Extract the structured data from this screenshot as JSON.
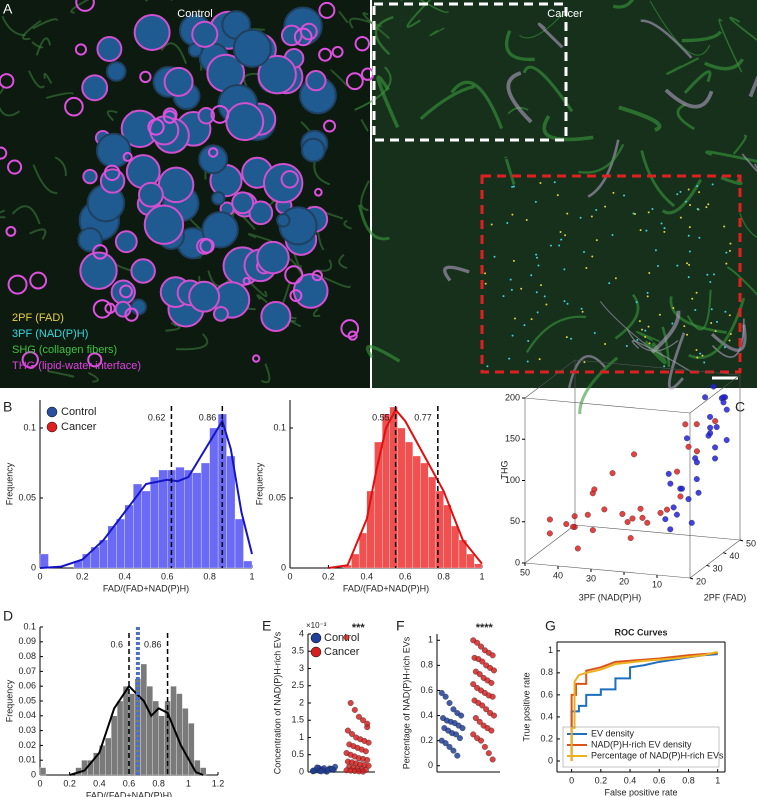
{
  "panel_labels": [
    "A",
    "B",
    "C",
    "D",
    "E",
    "F",
    "G"
  ],
  "image_panel": {
    "left_title": "Control",
    "right_title": "Cancer",
    "channels": [
      {
        "label": "2PF (FAD)",
        "color": "#e8d040"
      },
      {
        "label": "3PF (NAD(P)H)",
        "color": "#30d8e0"
      },
      {
        "label": "SHG (collagen fibers)",
        "color": "#40c040"
      },
      {
        "label": "THG (lipid-water interface)",
        "color": "#e040e0"
      }
    ]
  },
  "chart_data": [
    {
      "type": "histogram",
      "xlabel": "FAD/(FAD+NAD(P)H)",
      "ylabel": "Frequency",
      "xlim": [
        0,
        1
      ],
      "xticks": [
        0,
        0.2,
        0.4,
        0.6,
        0.8,
        1
      ],
      "ylim": [
        0,
        0.12
      ],
      "yticks": [
        0,
        0.05,
        0.1
      ],
      "bins": [
        0,
        0.04,
        0.08,
        0.12,
        0.16,
        0.2,
        0.24,
        0.28,
        0.32,
        0.36,
        0.4,
        0.44,
        0.48,
        0.52,
        0.56,
        0.6,
        0.64,
        0.68,
        0.72,
        0.76,
        0.8,
        0.84,
        0.88,
        0.92,
        0.96,
        1
      ],
      "values": [
        0.01,
        0,
        0,
        0,
        0.005,
        0.01,
        0.015,
        0.02,
        0.03,
        0.035,
        0.045,
        0.06,
        0.055,
        0.065,
        0.07,
        0.07,
        0.072,
        0.07,
        0.068,
        0.075,
        0.1,
        0.11,
        0.08,
        0.035,
        0.005
      ],
      "color": "#6a6af5",
      "fit": {
        "color": "#1515c8",
        "x": [
          0,
          0.1,
          0.2,
          0.3,
          0.4,
          0.5,
          0.6,
          0.65,
          0.7,
          0.8,
          0.86,
          0.9,
          0.95,
          1
        ],
        "values": [
          0,
          0.001,
          0.006,
          0.02,
          0.04,
          0.06,
          0.063,
          0.062,
          0.065,
          0.09,
          0.105,
          0.085,
          0.04,
          0.01
        ]
      },
      "vlines": [
        0.62,
        0.86
      ],
      "legend": [
        {
          "name": "Control",
          "color": "#2b4fa0"
        },
        {
          "name": "Cancer",
          "color": "#e02020"
        }
      ]
    },
    {
      "type": "histogram",
      "xlabel": "FAD/(FAD+NAD(P)H)",
      "ylabel": "Frequency",
      "xlim": [
        0,
        1
      ],
      "xticks": [
        0,
        0.2,
        0.4,
        0.6,
        0.8,
        1
      ],
      "ylim": [
        0,
        0.12
      ],
      "yticks": [
        0,
        0.05,
        0.1
      ],
      "bins": [
        0,
        0.04,
        0.08,
        0.12,
        0.16,
        0.2,
        0.24,
        0.28,
        0.32,
        0.36,
        0.4,
        0.44,
        0.48,
        0.52,
        0.56,
        0.6,
        0.64,
        0.68,
        0.72,
        0.76,
        0.8,
        0.84,
        0.88,
        0.92,
        0.96,
        1
      ],
      "values": [
        0,
        0,
        0,
        0,
        0,
        0,
        0,
        0.002,
        0.01,
        0.025,
        0.055,
        0.09,
        0.11,
        0.115,
        0.1,
        0.09,
        0.08,
        0.075,
        0.065,
        0.055,
        0.045,
        0.03,
        0.02,
        0.01,
        0.003
      ],
      "color": "#f05050",
      "fit": {
        "color": "#e01010",
        "x": [
          0.2,
          0.3,
          0.4,
          0.45,
          0.5,
          0.55,
          0.6,
          0.7,
          0.8,
          0.9,
          1
        ],
        "values": [
          0,
          0.002,
          0.035,
          0.07,
          0.1,
          0.113,
          0.105,
          0.08,
          0.055,
          0.02,
          0.003
        ]
      },
      "vlines": [
        0.55,
        0.77
      ]
    },
    {
      "type": "scatter3d",
      "xlabel": "3PF (NAD(P)H)",
      "ylabel": "2PF (FAD)",
      "zlabel": "THG",
      "xlim": [
        0,
        50
      ],
      "xticks": [
        10,
        20,
        30,
        40,
        50
      ],
      "ylim": [
        20,
        50
      ],
      "yticks": [
        20,
        30,
        40,
        50
      ],
      "zlim": [
        0,
        200
      ],
      "zticks": [
        0,
        50,
        100,
        150,
        200
      ],
      "series": [
        {
          "color": "#e02020",
          "x": [
            45,
            40,
            35,
            30,
            25,
            20,
            15,
            10,
            42,
            38,
            33,
            28,
            22,
            18,
            12,
            8,
            47,
            36,
            26,
            16,
            6,
            44,
            31,
            21,
            14,
            9,
            5,
            24,
            34,
            3
          ],
          "y": [
            25,
            30,
            22,
            28,
            35,
            24,
            32,
            26,
            34,
            21,
            27,
            38,
            23,
            30,
            36,
            40,
            29,
            33,
            25,
            22,
            31,
            37,
            24,
            28,
            42,
            35,
            45,
            39,
            26,
            30
          ],
          "z": [
            30,
            45,
            20,
            60,
            40,
            35,
            55,
            70,
            25,
            50,
            80,
            30,
            65,
            45,
            100,
            120,
            40,
            25,
            110,
            75,
            140,
            20,
            90,
            130,
            60,
            160,
            150,
            35,
            55,
            170
          ]
        },
        {
          "color": "#2020e0",
          "x": [
            2,
            4,
            6,
            8,
            3,
            5,
            7,
            9,
            1,
            10,
            2,
            4,
            6,
            3,
            5,
            8,
            1,
            7,
            11,
            4,
            6,
            2,
            9,
            3,
            5,
            12,
            1,
            6,
            8,
            3
          ],
          "y": [
            45,
            40,
            35,
            30,
            48,
            42,
            38,
            28,
            44,
            25,
            36,
            32,
            46,
            41,
            29,
            34,
            38,
            26,
            30,
            47,
            43,
            39,
            33,
            27,
            50,
            31,
            42,
            37,
            24,
            35
          ],
          "z": [
            180,
            150,
            120,
            90,
            160,
            140,
            110,
            70,
            130,
            60,
            170,
            100,
            190,
            125,
            80,
            145,
            155,
            65,
            95,
            175,
            135,
            115,
            85,
            55,
            165,
            105,
            185,
            75,
            50,
            195
          ]
        }
      ]
    },
    {
      "type": "histogram",
      "xlabel": "FAD/(FAD+NAD(P)H)",
      "ylabel": "Frequency",
      "xlim": [
        0,
        1.2
      ],
      "xticks": [
        0,
        0.2,
        0.4,
        0.6,
        0.8,
        1,
        1.2
      ],
      "ylim": [
        0,
        0.1
      ],
      "yticks": [
        0,
        0.01,
        0.02,
        0.03,
        0.04,
        0.05,
        0.06,
        0.07,
        0.08,
        0.09,
        0.1
      ],
      "bins": [
        0,
        0.04,
        0.08,
        0.12,
        0.16,
        0.2,
        0.24,
        0.28,
        0.32,
        0.36,
        0.4,
        0.44,
        0.48,
        0.52,
        0.56,
        0.6,
        0.64,
        0.68,
        0.72,
        0.76,
        0.8,
        0.84,
        0.88,
        0.92,
        0.96,
        1,
        1.04,
        1.08,
        1.12
      ],
      "values": [
        0.005,
        0,
        0,
        0,
        0,
        0,
        0.005,
        0.01,
        0.01,
        0.015,
        0.02,
        0.025,
        0.04,
        0.05,
        0.06,
        0.055,
        0.065,
        0.075,
        0.06,
        0.05,
        0.04,
        0.05,
        0.06,
        0.055,
        0.045,
        0.035,
        0.01,
        0.005
      ],
      "color": "#7a7a7a",
      "fit": {
        "color": "#000000",
        "x": [
          0.2,
          0.3,
          0.4,
          0.5,
          0.6,
          0.7,
          0.75,
          0.8,
          0.86,
          0.95,
          1.05,
          1.1
        ],
        "values": [
          0,
          0.003,
          0.015,
          0.045,
          0.06,
          0.05,
          0.04,
          0.045,
          0.042,
          0.02,
          0.002,
          0
        ]
      },
      "vlines": [
        0.6,
        0.86
      ],
      "mean_line": {
        "value": 0.66,
        "color": "#4a70c0"
      }
    },
    {
      "type": "strip",
      "ylabel": "Concentration of NAD(P)H-rich EVs",
      "y_multiplier": "×10⁻³",
      "ylim": [
        0,
        4
      ],
      "yticks": [
        0,
        0.5,
        1,
        1.5,
        2,
        2.5,
        3,
        3.5,
        4
      ],
      "significance": "***",
      "series": [
        {
          "name": "Control",
          "color": "#1f3f9a",
          "values": [
            0.02,
            0.05,
            0.08,
            0.03,
            0.1,
            0.06,
            0.04,
            0.12,
            0.07,
            0.01,
            0.09,
            0.15,
            0.05,
            0.03,
            0.11,
            0.06,
            0.08,
            0.04,
            0.13,
            0.02
          ]
        },
        {
          "name": "Cancer",
          "color": "#d42020",
          "values": [
            3.9,
            2.0,
            1.8,
            1.6,
            1.5,
            1.3,
            1.2,
            1.1,
            1.0,
            0.95,
            0.9,
            0.85,
            0.8,
            0.75,
            0.7,
            0.65,
            0.6,
            0.55,
            0.5,
            0.45,
            0.4,
            0.38,
            0.35,
            0.3,
            0.28,
            0.25,
            0.22,
            0.2,
            0.18,
            0.15,
            0.12,
            0.1,
            0.08,
            0.06,
            0.05,
            0.04,
            0.03,
            0.02,
            0.01,
            1.4
          ]
        }
      ]
    },
    {
      "type": "strip",
      "ylabel": "Percentage of NAD(P)H-rich EVs",
      "ylim": [
        -0.05,
        1.05
      ],
      "yticks": [
        0,
        0.2,
        0.4,
        0.6,
        0.8,
        1
      ],
      "significance": "****",
      "series": [
        {
          "color": "#1f3f9a",
          "values": [
            0.58,
            0.55,
            0.5,
            0.45,
            0.42,
            0.4,
            0.38,
            0.36,
            0.35,
            0.34,
            0.32,
            0.3,
            0.3,
            0.28,
            0.26,
            0.25,
            0.22,
            0.2,
            0.18,
            0.15,
            0.12,
            0.08
          ]
        },
        {
          "color": "#d42020",
          "values": [
            1,
            0.98,
            0.95,
            0.92,
            0.9,
            0.88,
            0.86,
            0.85,
            0.83,
            0.8,
            0.78,
            0.76,
            0.75,
            0.73,
            0.7,
            0.68,
            0.66,
            0.65,
            0.62,
            0.6,
            0.58,
            0.56,
            0.55,
            0.52,
            0.5,
            0.48,
            0.45,
            0.42,
            0.4,
            0.38,
            0.35,
            0.32,
            0.3,
            0.28,
            0.25,
            0.22,
            0.2,
            0.15,
            0.1,
            0.05
          ]
        }
      ]
    },
    {
      "type": "line",
      "title": "ROC Curves",
      "xlabel": "False positive rate",
      "ylabel": "True positive rate",
      "xlim": [
        -0.1,
        1.05
      ],
      "xticks": [
        0,
        0.2,
        0.4,
        0.6,
        0.8,
        1
      ],
      "ylim": [
        -0.1,
        1.08
      ],
      "yticks": [
        0,
        0.2,
        0.4,
        0.6,
        0.8,
        1
      ],
      "series": [
        {
          "name": "EV density",
          "color": "#1f6fc0",
          "x": [
            0,
            0,
            0.05,
            0.05,
            0.1,
            0.1,
            0.2,
            0.2,
            0.3,
            0.3,
            0.4,
            0.4,
            0.5,
            0.6,
            0.7,
            0.8,
            0.9,
            1
          ],
          "values": [
            0,
            0.45,
            0.45,
            0.5,
            0.5,
            0.6,
            0.6,
            0.65,
            0.65,
            0.75,
            0.75,
            0.85,
            0.87,
            0.9,
            0.92,
            0.94,
            0.96,
            0.97
          ]
        },
        {
          "name": "NAD(P)H-rich EV density",
          "color": "#d9541a",
          "x": [
            0,
            0,
            0.03,
            0.03,
            0.1,
            0.1,
            0.2,
            0.3,
            0.4,
            0.5,
            0.6,
            0.8,
            1
          ],
          "values": [
            0,
            0.6,
            0.6,
            0.7,
            0.7,
            0.82,
            0.85,
            0.9,
            0.91,
            0.92,
            0.93,
            0.96,
            0.98
          ]
        },
        {
          "name": "Percentage of NAD(P)H-rich EVs",
          "color": "#edb120",
          "x": [
            0,
            0,
            0.02,
            0.02,
            0.05,
            0.1,
            0.2,
            0.3,
            0.5,
            0.7,
            0.9,
            1
          ],
          "values": [
            0,
            0.3,
            0.3,
            0.72,
            0.78,
            0.8,
            0.83,
            0.88,
            0.91,
            0.93,
            0.96,
            0.99
          ]
        }
      ]
    }
  ]
}
